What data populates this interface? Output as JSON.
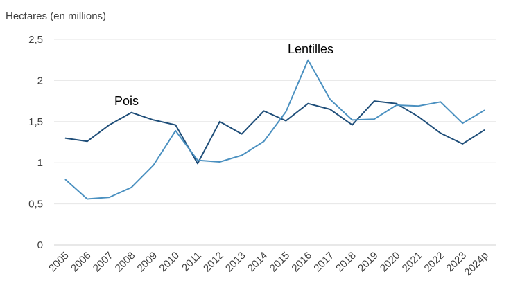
{
  "chart_data": {
    "type": "line",
    "ylabel": "Hectares (en millions)",
    "xlabel": "",
    "title": "",
    "ylim": [
      0,
      2.5
    ],
    "yticks": [
      "0",
      "0,5",
      "1",
      "1,5",
      "2",
      "2,5"
    ],
    "categories": [
      "2005",
      "2006",
      "2007",
      "2008",
      "2009",
      "2010",
      "2011",
      "2012",
      "2013",
      "2014",
      "2015",
      "2016",
      "2017",
      "2018",
      "2019",
      "2020",
      "2021",
      "2022",
      "2023",
      "2024p"
    ],
    "grid": true,
    "series": [
      {
        "name": "Pois",
        "color": "#1f4e79",
        "values": [
          1.3,
          1.26,
          1.46,
          1.61,
          1.52,
          1.46,
          0.99,
          1.5,
          1.35,
          1.63,
          1.51,
          1.72,
          1.65,
          1.46,
          1.75,
          1.72,
          1.56,
          1.36,
          1.23,
          1.4
        ]
      },
      {
        "name": "Lentilles",
        "color": "#4a90c0",
        "values": [
          0.8,
          0.56,
          0.58,
          0.7,
          0.97,
          1.39,
          1.03,
          1.01,
          1.09,
          1.26,
          1.62,
          2.25,
          1.77,
          1.52,
          1.53,
          1.7,
          1.69,
          1.74,
          1.48,
          1.64
        ]
      }
    ]
  }
}
